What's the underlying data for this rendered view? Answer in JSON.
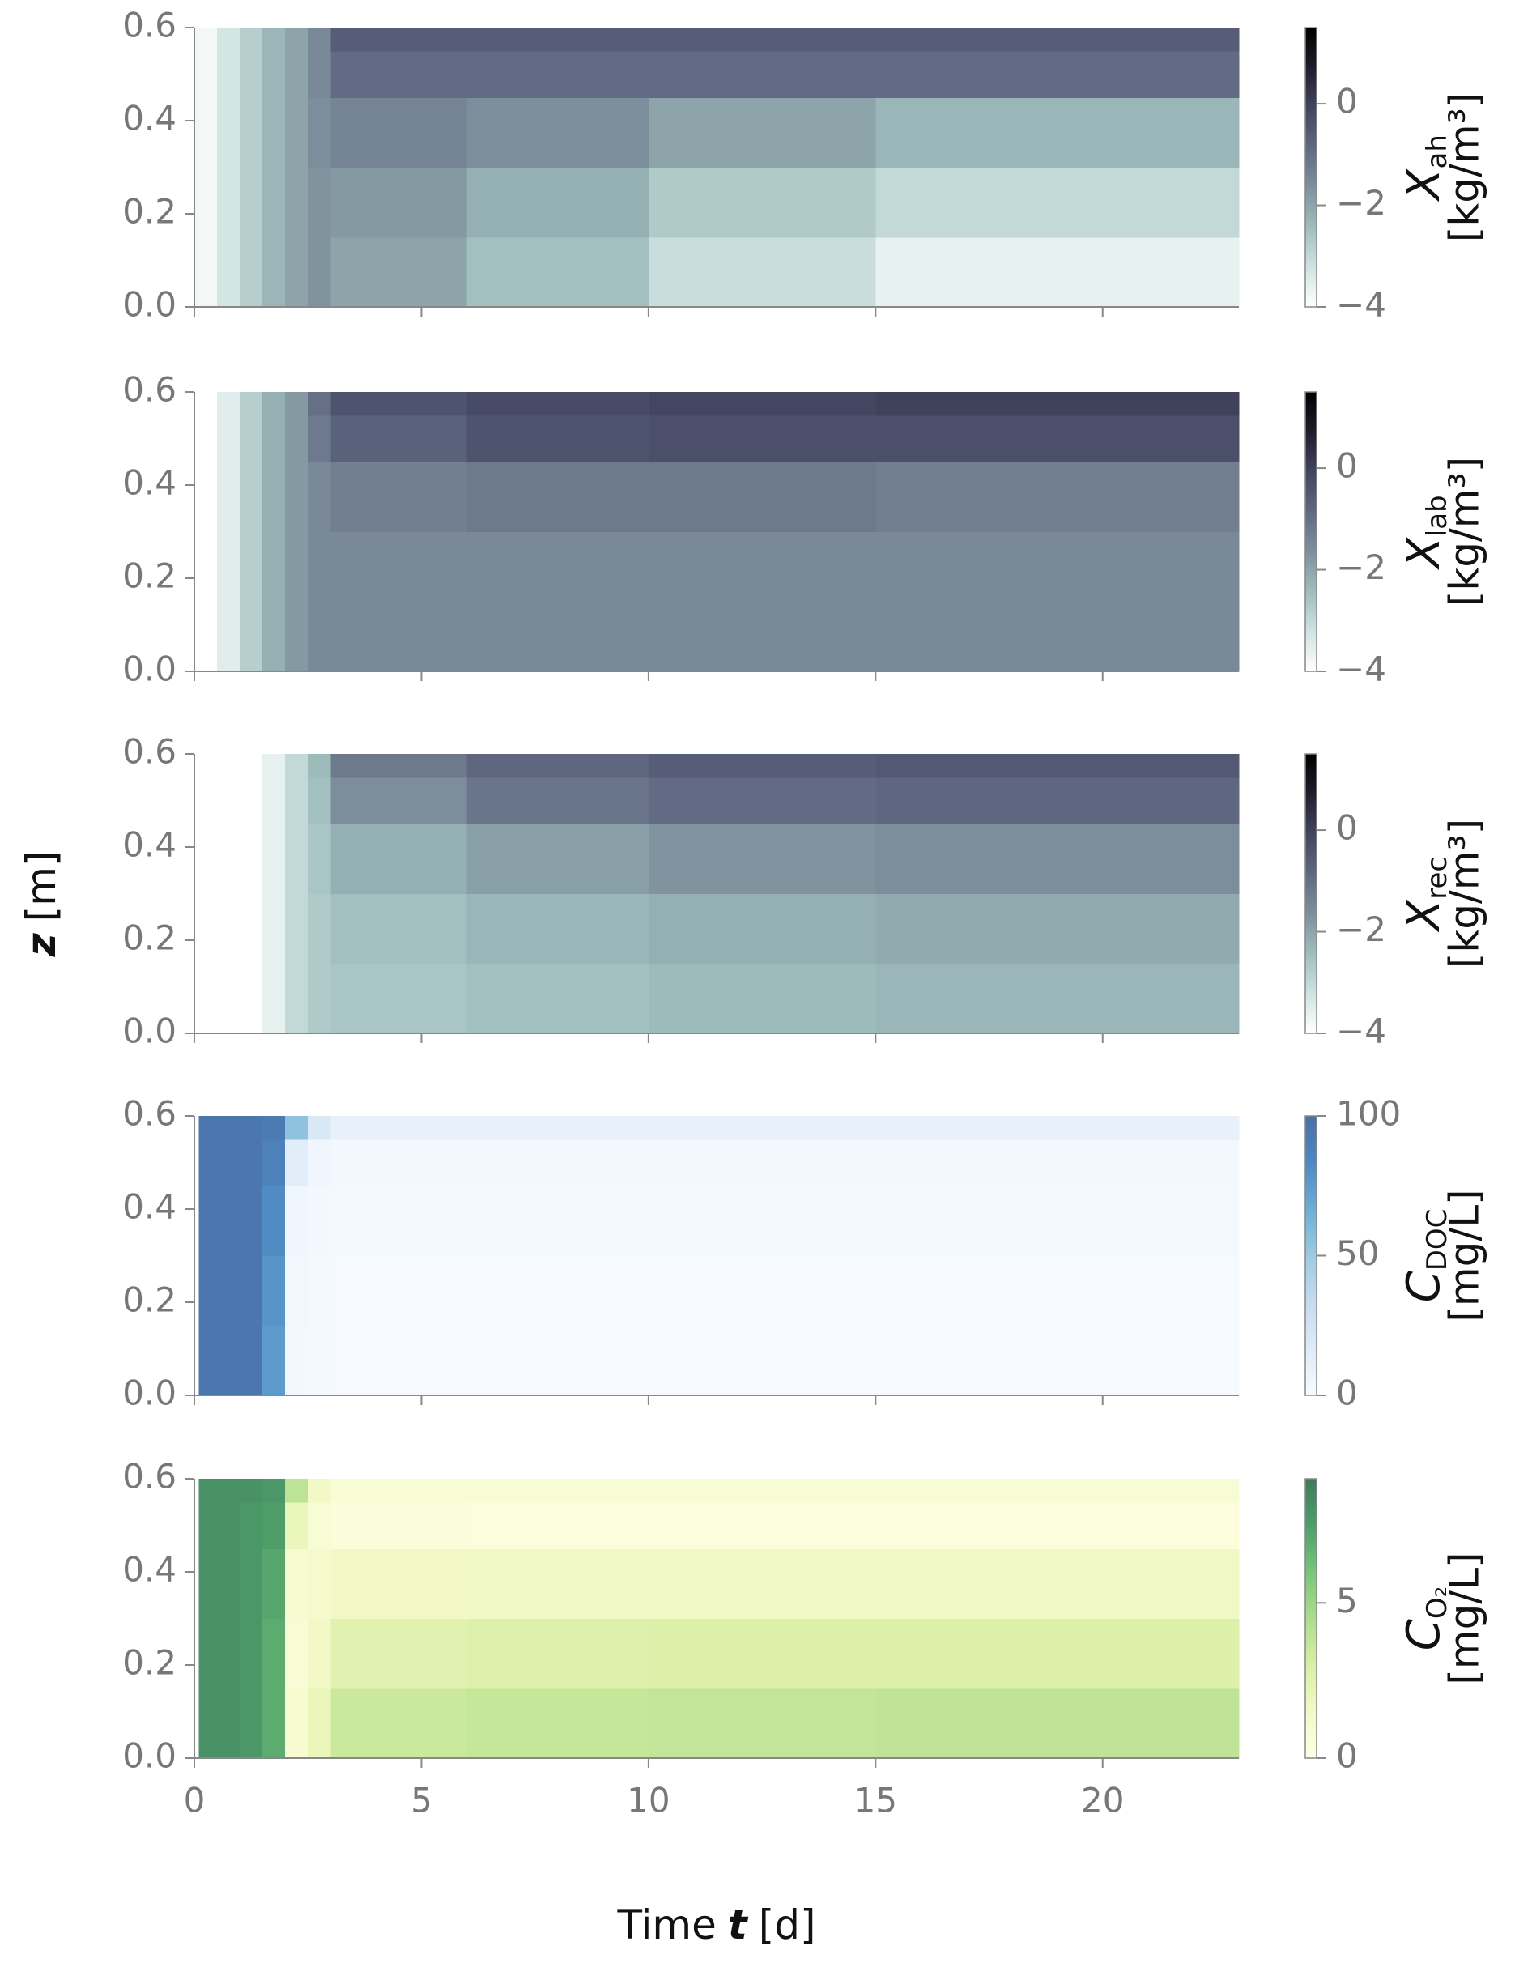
{
  "ylabel": {
    "symbol": "z",
    "unit": "[m]"
  },
  "xlabel": {
    "text": "Time",
    "symbol": "t",
    "unit": "[d]"
  },
  "chart_data": [
    {
      "type": "heatmap",
      "colorbar_label": {
        "symbol": "X",
        "subscript": "ah",
        "unit": "[kg/m³]"
      },
      "xlim": [
        0,
        23
      ],
      "xticks": [
        0,
        5,
        10,
        15,
        20
      ],
      "show_xticklabels": false,
      "ylim": [
        0,
        0.6
      ],
      "yticks": [
        {
          "value": 0,
          "label": "0.0"
        },
        0.2,
        0.4,
        0.6
      ],
      "x_edges": [
        0,
        0.5,
        1,
        1.5,
        2,
        2.5,
        3,
        6,
        10,
        15,
        23
      ],
      "z_edges": [
        0,
        0.15,
        0.3,
        0.45,
        0.55,
        0.6
      ],
      "values": [
        [
          -3.8,
          -3.3,
          -2.8,
          -2.3,
          -2.0,
          -1.7,
          -2.0,
          -2.5,
          -3.1,
          -3.6
        ],
        [
          -3.8,
          -3.3,
          -2.8,
          -2.3,
          -2.0,
          -1.7,
          -1.8,
          -2.2,
          -2.7,
          -3.0
        ],
        [
          -3.8,
          -3.3,
          -2.8,
          -2.3,
          -2.0,
          -1.6,
          -1.4,
          -1.6,
          -2.0,
          -2.3
        ],
        [
          -3.8,
          -3.3,
          -2.8,
          -2.3,
          -2.0,
          -1.5,
          -0.9,
          -0.9,
          -0.9,
          -0.9
        ],
        [
          -3.8,
          -3.3,
          -2.8,
          -2.3,
          -2.0,
          -1.5,
          -0.6,
          -0.6,
          -0.6,
          -0.6
        ]
      ],
      "vlim": [
        -4,
        1.5
      ],
      "cbar_ticks": [
        {
          "value": -4,
          "label": "−4"
        },
        {
          "value": -2,
          "label": "−2"
        },
        0
      ],
      "colormap": [
        "#ffffff",
        "#cfe3e1",
        "#9fbdbd",
        "#7e909c",
        "#606982",
        "#434560",
        "#1e1e2c",
        "#000000"
      ]
    },
    {
      "type": "heatmap",
      "colorbar_label": {
        "symbol": "X",
        "subscript": "lab",
        "unit": "[kg/m³]"
      },
      "xlim": [
        0,
        23
      ],
      "xticks": [
        0,
        5,
        10,
        15,
        20
      ],
      "show_xticklabels": false,
      "ylim": [
        0,
        0.6
      ],
      "yticks": [
        {
          "value": 0,
          "label": "0.0"
        },
        0.2,
        0.4,
        0.6
      ],
      "x_edges": [
        0,
        0.5,
        1,
        1.5,
        2,
        2.5,
        3,
        6,
        10,
        15,
        23
      ],
      "z_edges": [
        0,
        0.15,
        0.3,
        0.45,
        0.55,
        0.6
      ],
      "values": [
        [
          -4.0,
          -3.5,
          -2.8,
          -2.2,
          -1.8,
          -1.5,
          -1.5,
          -1.5,
          -1.5,
          -1.5
        ],
        [
          -4.0,
          -3.5,
          -2.8,
          -2.2,
          -1.8,
          -1.5,
          -1.5,
          -1.5,
          -1.5,
          -1.5
        ],
        [
          -4.0,
          -3.5,
          -2.8,
          -2.2,
          -1.8,
          -1.5,
          -1.3,
          -1.2,
          -1.2,
          -1.3
        ],
        [
          -4.0,
          -3.5,
          -2.8,
          -2.2,
          -1.8,
          -1.2,
          -0.7,
          -0.4,
          -0.3,
          -0.3
        ],
        [
          -4.0,
          -3.5,
          -2.8,
          -2.2,
          -1.8,
          -1.0,
          -0.4,
          -0.2,
          -0.1,
          0.0
        ]
      ],
      "vlim": [
        -4,
        1.5
      ],
      "cbar_ticks": [
        {
          "value": -4,
          "label": "−4"
        },
        {
          "value": -2,
          "label": "−2"
        },
        0
      ],
      "colormap": [
        "#ffffff",
        "#cfe3e1",
        "#9fbdbd",
        "#7e909c",
        "#606982",
        "#434560",
        "#1e1e2c",
        "#000000"
      ]
    },
    {
      "type": "heatmap",
      "colorbar_label": {
        "symbol": "X",
        "subscript": "rec",
        "unit": "[kg/m³]"
      },
      "xlim": [
        0,
        23
      ],
      "xticks": [
        0,
        5,
        10,
        15,
        20
      ],
      "show_xticklabels": false,
      "ylim": [
        0,
        0.6
      ],
      "yticks": [
        {
          "value": 0,
          "label": "0.0"
        },
        0.2,
        0.4,
        0.6
      ],
      "x_edges": [
        0,
        0.5,
        1,
        1.5,
        2,
        2.5,
        3,
        6,
        10,
        15,
        23
      ],
      "z_edges": [
        0,
        0.15,
        0.3,
        0.45,
        0.55,
        0.6
      ],
      "values": [
        [
          null,
          null,
          null,
          -3.6,
          -3.0,
          -2.7,
          -2.6,
          -2.5,
          -2.4,
          -2.3
        ],
        [
          null,
          null,
          null,
          -3.6,
          -3.0,
          -2.7,
          -2.5,
          -2.3,
          -2.2,
          -2.1
        ],
        [
          null,
          null,
          null,
          -3.6,
          -3.0,
          -2.6,
          -2.2,
          -1.9,
          -1.7,
          -1.6
        ],
        [
          null,
          null,
          null,
          -3.6,
          -3.0,
          -2.5,
          -1.6,
          -1.1,
          -0.9,
          -0.8
        ],
        [
          null,
          null,
          null,
          -3.6,
          -3.0,
          -2.4,
          -1.2,
          -0.8,
          -0.6,
          -0.5
        ]
      ],
      "vlim": [
        -4,
        1.5
      ],
      "cbar_ticks": [
        {
          "value": -4,
          "label": "−4"
        },
        {
          "value": -2,
          "label": "−2"
        },
        0
      ],
      "colormap": [
        "#ffffff",
        "#cfe3e1",
        "#9fbdbd",
        "#7e909c",
        "#606982",
        "#434560",
        "#1e1e2c",
        "#000000"
      ]
    },
    {
      "type": "heatmap",
      "colorbar_label": {
        "symbol": "C",
        "subscript": "DOC",
        "unit": "[mg/L]"
      },
      "xlim": [
        0,
        23
      ],
      "xticks": [
        0,
        5,
        10,
        15,
        20
      ],
      "show_xticklabels": false,
      "ylim": [
        0,
        0.6
      ],
      "yticks": [
        {
          "value": 0,
          "label": "0.0"
        },
        0.2,
        0.4,
        0.6
      ],
      "x_edges": [
        0.1,
        0.5,
        1,
        1.5,
        2,
        2.5,
        3,
        6,
        10,
        15,
        23
      ],
      "z_edges": [
        0,
        0.15,
        0.3,
        0.45,
        0.55,
        0.6
      ],
      "values": [
        [
          95,
          95,
          95,
          75,
          3,
          2,
          1,
          1,
          1,
          1
        ],
        [
          95,
          95,
          95,
          78,
          4,
          2,
          1,
          1,
          1,
          1
        ],
        [
          95,
          95,
          95,
          82,
          5,
          3,
          2,
          2,
          2,
          2
        ],
        [
          95,
          95,
          95,
          88,
          15,
          5,
          3,
          3,
          3,
          3
        ],
        [
          95,
          95,
          95,
          92,
          55,
          20,
          10,
          10,
          10,
          10
        ]
      ],
      "vlim": [
        0,
        100
      ],
      "cbar_ticks": [
        0,
        50,
        100
      ],
      "colormap": [
        "#f7fbff",
        "#deebf7",
        "#c6dbef",
        "#9ecae1",
        "#6baed6",
        "#4f88c2",
        "#4a6fa5"
      ]
    },
    {
      "type": "heatmap",
      "colorbar_label": {
        "symbol": "C",
        "subscript": "O₂",
        "unit": "[mg/L]"
      },
      "xlim": [
        0,
        23
      ],
      "xticks": [
        0,
        5,
        10,
        15,
        20
      ],
      "show_xticklabels": true,
      "ylim": [
        0,
        0.6
      ],
      "yticks": [
        {
          "value": 0,
          "label": "0.0"
        },
        0.2,
        0.4,
        0.6
      ],
      "x_edges": [
        0.1,
        0.5,
        1,
        1.5,
        2,
        2.5,
        3,
        6,
        10,
        15,
        23
      ],
      "z_edges": [
        0,
        0.15,
        0.3,
        0.45,
        0.55,
        0.6
      ],
      "values": [
        [
          8,
          8,
          7.8,
          7,
          1,
          2,
          3.5,
          3.7,
          3.8,
          3.9
        ],
        [
          8,
          8,
          7.8,
          7,
          0.8,
          1.5,
          2.5,
          2.7,
          2.8,
          2.8
        ],
        [
          8,
          8,
          7.8,
          7.2,
          1,
          1.2,
          1.5,
          1.6,
          1.6,
          1.6
        ],
        [
          8,
          8,
          7.8,
          7.5,
          2,
          0.8,
          0.6,
          0.5,
          0.5,
          0.5
        ],
        [
          8,
          8,
          8,
          7.8,
          4,
          1.5,
          0.8,
          0.8,
          0.8,
          0.8
        ]
      ],
      "vlim": [
        0,
        9
      ],
      "cbar_ticks": [
        0,
        5
      ],
      "colormap": [
        "#ffffe5",
        "#f2f9c6",
        "#d9efa5",
        "#addd8e",
        "#78c679",
        "#4e9e6a",
        "#3f7a5e"
      ]
    }
  ]
}
